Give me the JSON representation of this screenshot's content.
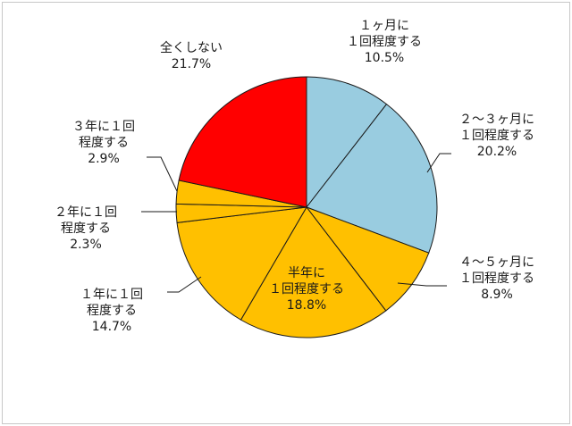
{
  "chart_data": {
    "type": "pie",
    "title": "",
    "start": "12 o'clock",
    "direction": "clockwise",
    "legend": "none",
    "slices": [
      {
        "lines": [
          "１ヶ月に",
          "１回程度する"
        ],
        "value_label": "10.5%",
        "value": 10.5,
        "color": "#99cce0"
      },
      {
        "lines": [
          "２～３ヶ月に",
          "１回程度する"
        ],
        "value_label": "20.2%",
        "value": 20.2,
        "color": "#99cce0"
      },
      {
        "lines": [
          "４～５ヶ月に",
          "１回程度する"
        ],
        "value_label": "8.9%",
        "value": 8.9,
        "color": "#ffc000"
      },
      {
        "lines": [
          "半年に",
          "１回程度する"
        ],
        "value_label": "18.8%",
        "value": 18.8,
        "color": "#ffc000"
      },
      {
        "lines": [
          "１年に１回",
          "程度する"
        ],
        "value_label": "14.7%",
        "value": 14.7,
        "color": "#ffc000"
      },
      {
        "lines": [
          "２年に１回",
          "程度する"
        ],
        "value_label": "2.3%",
        "value": 2.3,
        "color": "#ffc000"
      },
      {
        "lines": [
          "３年に１回",
          "程度する"
        ],
        "value_label": "2.9%",
        "value": 2.9,
        "color": "#ffc000"
      },
      {
        "lines": [
          "全くしない"
        ],
        "value_label": "21.7%",
        "value": 21.7,
        "color": "#ff0000"
      }
    ]
  }
}
